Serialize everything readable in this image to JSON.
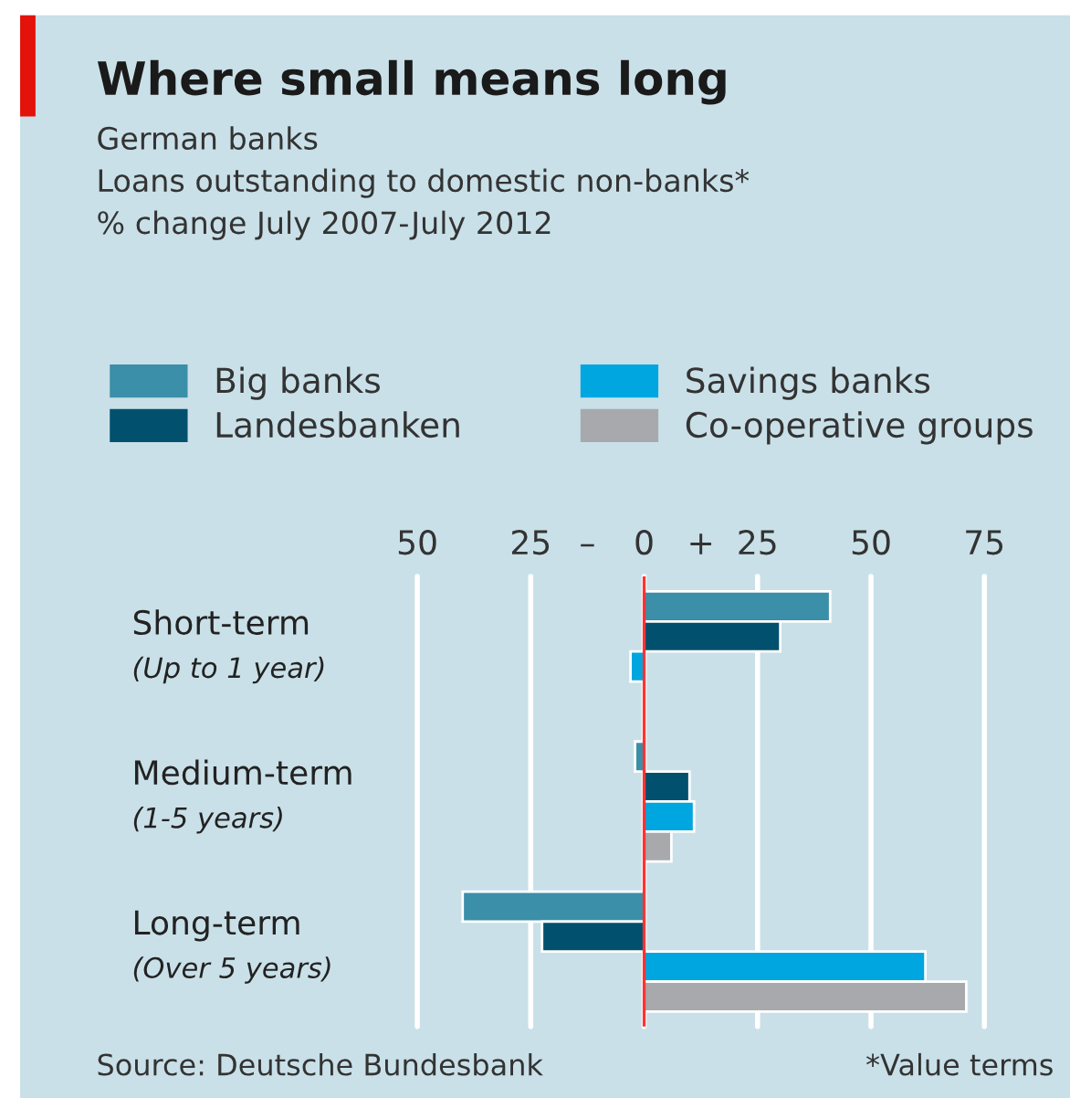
{
  "chart_data": {
    "type": "bar",
    "orientation": "horizontal",
    "title": "Where small means long",
    "subtitle": "German banks\nLoans outstanding to domestic non-banks*\n% change July 2007-July 2012",
    "categories": [
      "Short-term\n(Up to 1 year)",
      "Medium-term\n(1-5 years)",
      "Long-term\n(Over 5 years)"
    ],
    "series": [
      {
        "name": "Big banks",
        "color": "#3b8fa8",
        "values": [
          41,
          -2,
          -40
        ]
      },
      {
        "name": "Landesbanken",
        "color": "#00506e",
        "values": [
          30,
          10,
          -22.5
        ]
      },
      {
        "name": "Savings banks",
        "color": "#00a6df",
        "values": [
          -3,
          11,
          62
        ]
      },
      {
        "name": "Co-operative groups",
        "color": "#a7a9ac",
        "values": [
          null,
          6,
          71
        ]
      }
    ],
    "xlim": [
      -50,
      75
    ],
    "xticks": [
      {
        "value": -50,
        "label": "50"
      },
      {
        "value": -25,
        "label": "25"
      },
      {
        "value": -12.5,
        "label": "–"
      },
      0,
      {
        "value": 12.5,
        "label": "+"
      },
      25,
      50,
      75
    ],
    "grid": "x",
    "ref_lines": [
      {
        "axis": "x",
        "value": 0,
        "label": null,
        "color": "#ff3333"
      }
    ],
    "legend": "top",
    "annotations": [
      "Source: Deutsche Bundesbank",
      "*Value terms"
    ]
  }
}
